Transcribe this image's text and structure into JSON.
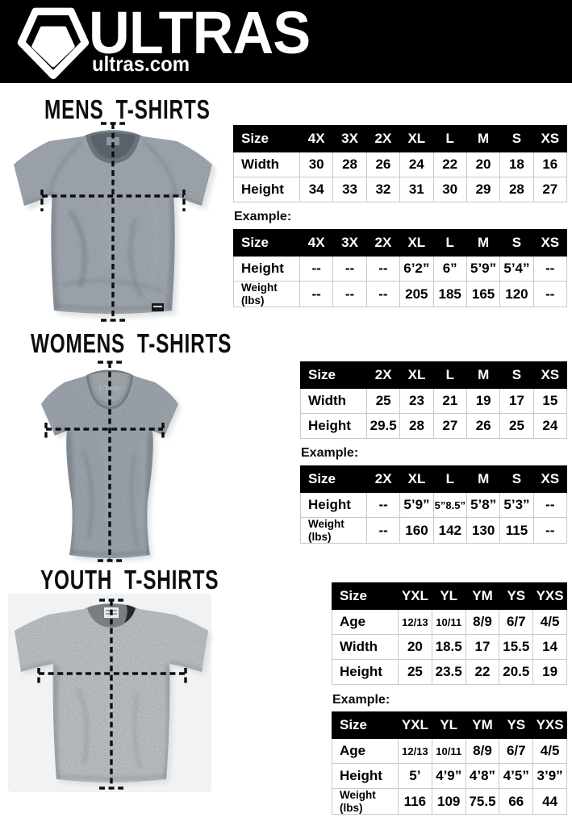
{
  "header": {
    "brand": "ULTRAS",
    "website": "ultras.com",
    "logo_icon": "pentagon-badge-icon",
    "background": "#000000"
  },
  "colors": {
    "table_header_bg": "#000000",
    "table_header_text": "#ffffff",
    "table_border": "#c9c9c9",
    "heading_text": "#0d0d0d",
    "shirt_gray_mens": "#828a92",
    "shirt_gray_womens": "#7d868f",
    "shirt_gray_youth": "#99a0a4",
    "page_bg": "#ffffff"
  },
  "sections": [
    {
      "title": "MENS T-SHIRTS",
      "image": "mens-tshirt-with-measurement-lines",
      "size_table": {
        "columns": [
          "Size",
          "4X",
          "3X",
          "2X",
          "XL",
          "L",
          "M",
          "S",
          "XS"
        ],
        "rows": [
          {
            "label": "Width",
            "values": [
              "30",
              "28",
              "26",
              "24",
              "22",
              "20",
              "18",
              "16"
            ]
          },
          {
            "label": "Height",
            "values": [
              "34",
              "33",
              "32",
              "31",
              "30",
              "29",
              "28",
              "27"
            ]
          }
        ]
      },
      "example_label": "Example:",
      "example_table": {
        "columns": [
          "Size",
          "4X",
          "3X",
          "2X",
          "XL",
          "L",
          "M",
          "S",
          "XS"
        ],
        "rows": [
          {
            "label": "Height",
            "values": [
              "--",
              "--",
              "--",
              "6’2”",
              "6”",
              "5’9”",
              "5’4”",
              "--"
            ]
          },
          {
            "label": "Weight\n(lbs)",
            "values": [
              "--",
              "--",
              "--",
              "205",
              "185",
              "165",
              "120",
              "--"
            ]
          }
        ]
      }
    },
    {
      "title": "WOMENS T-SHIRTS",
      "image": "womens-tshirt-with-measurement-lines",
      "size_table": {
        "columns": [
          "Size",
          "2X",
          "XL",
          "L",
          "M",
          "S",
          "XS"
        ],
        "rows": [
          {
            "label": "Width",
            "values": [
              "25",
              "23",
              "21",
              "19",
              "17",
              "15"
            ]
          },
          {
            "label": "Height",
            "values": [
              "29.5",
              "28",
              "27",
              "26",
              "25",
              "24"
            ]
          }
        ]
      },
      "example_label": "Example:",
      "example_table": {
        "columns": [
          "Size",
          "2X",
          "XL",
          "L",
          "M",
          "S",
          "XS"
        ],
        "rows": [
          {
            "label": "Height",
            "values": [
              "--",
              "5’9”",
              "5”8.5”",
              "5’8”",
              "5’3”",
              "--"
            ]
          },
          {
            "label": "Weight\n(lbs)",
            "values": [
              "--",
              "160",
              "142",
              "130",
              "115",
              "--"
            ]
          }
        ]
      }
    },
    {
      "title": "YOUTH T-SHIRTS",
      "image": "youth-tshirt-with-measurement-lines",
      "size_table": {
        "columns": [
          "Size",
          "YXL",
          "YL",
          "YM",
          "YS",
          "YXS"
        ],
        "rows": [
          {
            "label": "Age",
            "values": [
              "12/13",
              "10/11",
              "8/9",
              "6/7",
              "4/5"
            ]
          },
          {
            "label": "Width",
            "values": [
              "20",
              "18.5",
              "17",
              "15.5",
              "14"
            ]
          },
          {
            "label": "Height",
            "values": [
              "25",
              "23.5",
              "22",
              "20.5",
              "19"
            ]
          }
        ]
      },
      "example_label": "Example:",
      "example_table": {
        "columns": [
          "Size",
          "YXL",
          "YL",
          "YM",
          "YS",
          "YXS"
        ],
        "rows": [
          {
            "label": "Age",
            "values": [
              "12/13",
              "10/11",
              "8/9",
              "6/7",
              "4/5"
            ]
          },
          {
            "label": "Height",
            "values": [
              "5’",
              "4’9”",
              "4’8”",
              "4’5”",
              "3’9”"
            ]
          },
          {
            "label": "Weight\n(lbs)",
            "values": [
              "116",
              "109",
              "75.5",
              "66",
              "44"
            ]
          }
        ]
      }
    }
  ]
}
